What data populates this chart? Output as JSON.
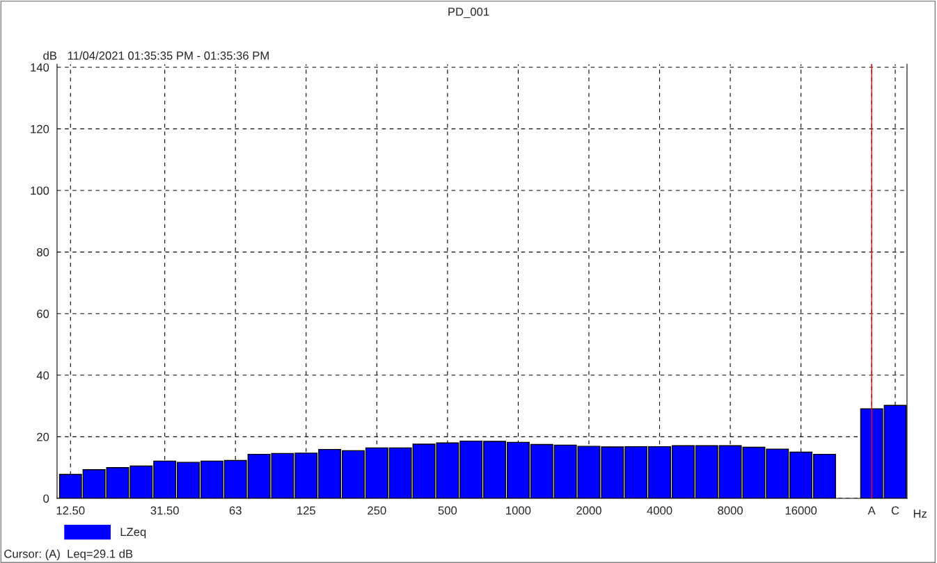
{
  "chart_data": {
    "type": "bar",
    "title": "PD_001",
    "subtitle": "11/04/2021 01:35:35 PM - 01:35:36 PM",
    "xlabel": "Hz",
    "ylabel": "dB",
    "categories": [
      "12.50",
      null,
      null,
      null,
      "31.50",
      null,
      null,
      "63",
      null,
      null,
      "125",
      null,
      null,
      "250",
      null,
      null,
      "500",
      null,
      null,
      "1000",
      null,
      null,
      "2000",
      null,
      null,
      "4000",
      null,
      null,
      "8000",
      null,
      null,
      "16000",
      null,
      null,
      "A",
      "C"
    ],
    "series": [
      {
        "name": "LZeq",
        "color": "#0000ff",
        "values": [
          7.8,
          9.3,
          10.0,
          10.5,
          12.1,
          11.7,
          12.1,
          12.3,
          14.3,
          14.6,
          14.7,
          15.9,
          15.5,
          16.4,
          16.4,
          17.6,
          18.0,
          18.6,
          18.5,
          18.2,
          17.5,
          17.3,
          16.9,
          16.7,
          16.8,
          16.8,
          17.1,
          17.1,
          17.1,
          16.6,
          16.0,
          15.0,
          14.3,
          null,
          29.1,
          30.2
        ]
      }
    ],
    "ylim": [
      0,
      141
    ],
    "yticks": [
      0,
      20,
      40,
      60,
      80,
      100,
      120,
      140
    ],
    "grid": true,
    "legend": "bottom left",
    "ref_lines": [
      {
        "axis": "x",
        "value": "A",
        "color": "#ff0000"
      }
    ],
    "annotations": [
      "Cursor: (A)  Leq=29.1 dB"
    ]
  }
}
